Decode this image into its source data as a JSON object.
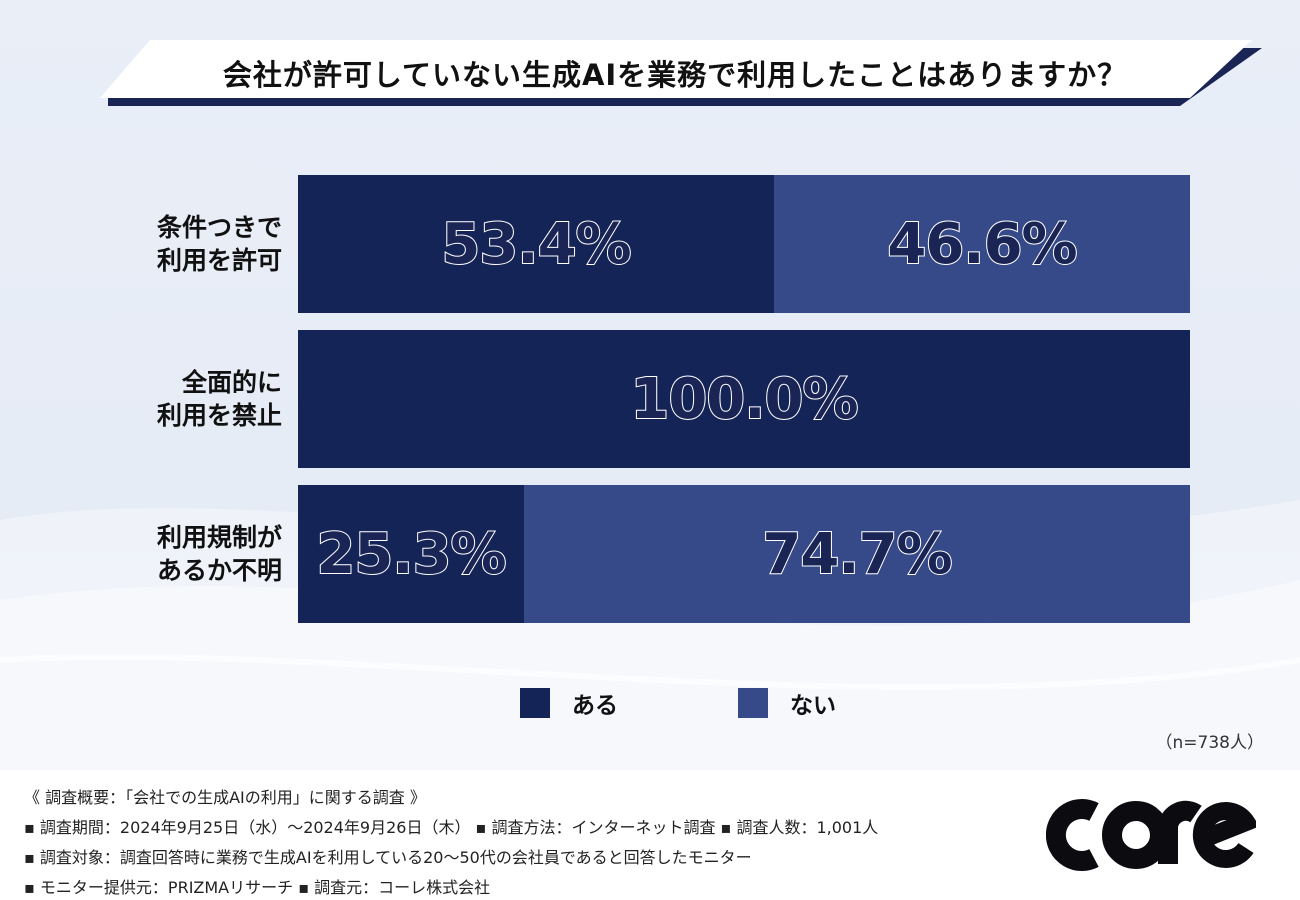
{
  "title": "会社が許可していない生成AIを業務で利用したことはありますか？",
  "colors": {
    "aru": "#152457",
    "nai": "#364a8a",
    "title_bar_dark": "#1a2556"
  },
  "chart_data": {
    "type": "bar",
    "orientation": "horizontal-stacked-100",
    "title": "会社が許可していない生成AIを業務で利用したことはありますか？",
    "categories": [
      [
        "条件つきで",
        "利用を許可"
      ],
      [
        "全面的に",
        "利用を禁止"
      ],
      [
        "利用規制が",
        "あるか不明"
      ]
    ],
    "series": [
      {
        "name": "ある",
        "values": [
          53.4,
          100.0,
          25.3
        ],
        "labels": [
          "53.4%",
          "100.0%",
          "25.3%"
        ]
      },
      {
        "name": "ない",
        "values": [
          46.6,
          0.0,
          74.7
        ],
        "labels": [
          "46.6%",
          "",
          "74.7%"
        ]
      }
    ],
    "xlim": [
      0,
      100
    ],
    "legend_position": "bottom-center",
    "grid": false,
    "sample_note": "（n=738人）"
  },
  "legend": {
    "aru": "ある",
    "nai": "ない"
  },
  "footer": {
    "summary": "《 調査概要：「会社での生成AIの利用」に関する調査 》",
    "line1": "▪ 調査期間：2024年9月25日（水）〜2024年9月26日（木） ▪ 調査方法：インターネット調査 ▪ 調査人数：1,001人",
    "line2": "▪ 調査対象：調査回答時に業務で生成AIを利用している20〜50代の会社員であると回答したモニター",
    "line3": "▪ モニター提供元：PRIZMAリサーチ ▪ 調査元：コーレ株式会社",
    "logo_text": "CORE"
  }
}
